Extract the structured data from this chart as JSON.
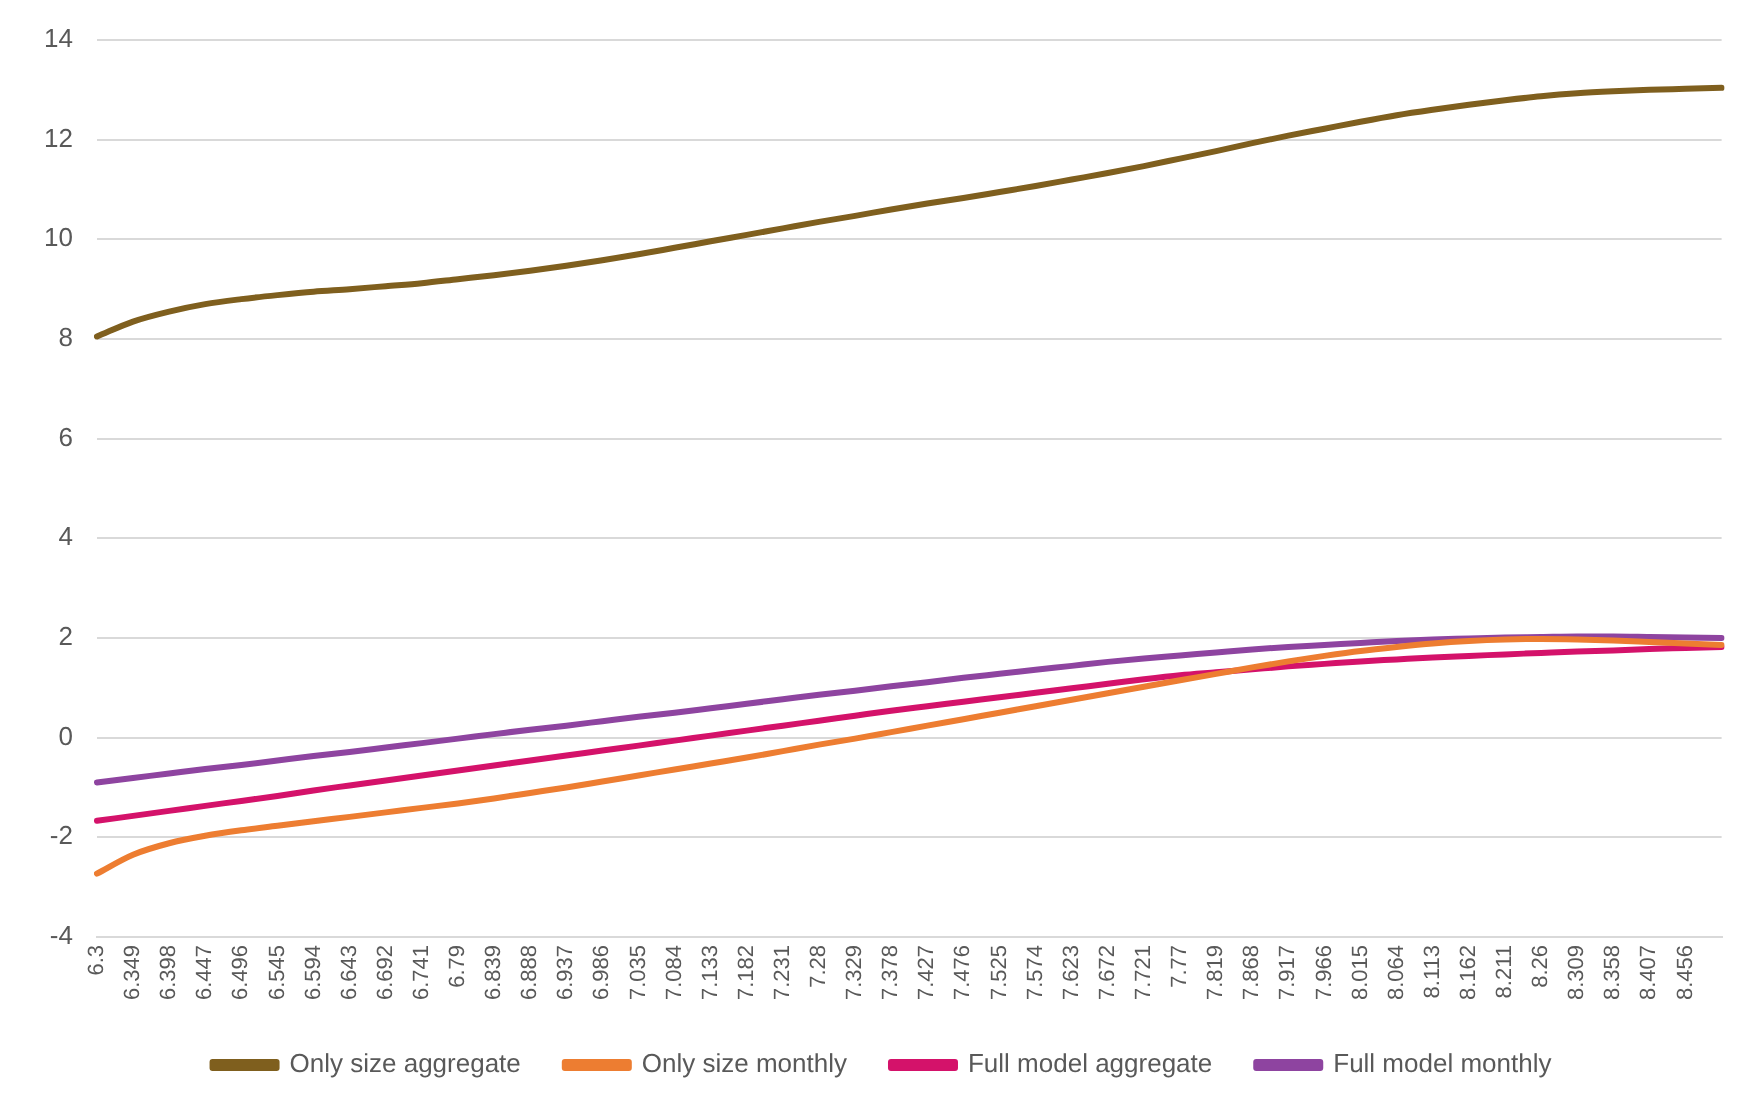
{
  "chart_data": {
    "type": "line",
    "categories": [
      "6.3",
      "6.349",
      "6.398",
      "6.447",
      "6.496",
      "6.545",
      "6.594",
      "6.643",
      "6.692",
      "6.741",
      "6.79",
      "6.839",
      "6.888",
      "6.937",
      "6.986",
      "7.035",
      "7.084",
      "7.133",
      "7.182",
      "7.231",
      "7.28",
      "7.329",
      "7.378",
      "7.427",
      "7.476",
      "7.525",
      "7.574",
      "7.623",
      "7.672",
      "7.721",
      "7.77",
      "7.819",
      "7.868",
      "7.917",
      "7.966",
      "8.015",
      "8.064",
      "8.113",
      "8.162",
      "8.211",
      "8.26",
      "8.309",
      "8.358",
      "8.407",
      "8.456",
      null
    ],
    "series": [
      {
        "name": "Only size aggregate",
        "color": "#7f5f1e",
        "values": [
          8.05,
          8.35,
          8.55,
          8.7,
          8.8,
          8.88,
          8.95,
          9.0,
          9.06,
          9.12,
          9.2,
          9.28,
          9.37,
          9.47,
          9.58,
          9.7,
          9.83,
          9.96,
          10.09,
          10.22,
          10.35,
          10.47,
          10.6,
          10.72,
          10.83,
          10.95,
          11.07,
          11.2,
          11.33,
          11.47,
          11.62,
          11.77,
          11.93,
          12.08,
          12.22,
          12.36,
          12.49,
          12.6,
          12.7,
          12.79,
          12.87,
          12.93,
          12.97,
          13.0,
          13.02,
          13.04
        ]
      },
      {
        "name": "Only size monthly",
        "color": "#ed7d31",
        "values": [
          -2.73,
          -2.35,
          -2.12,
          -1.97,
          -1.86,
          -1.77,
          -1.68,
          -1.59,
          -1.5,
          -1.41,
          -1.32,
          -1.22,
          -1.11,
          -1.0,
          -0.88,
          -0.76,
          -0.64,
          -0.52,
          -0.4,
          -0.27,
          -0.14,
          -0.02,
          0.11,
          0.24,
          0.37,
          0.5,
          0.63,
          0.76,
          0.89,
          1.02,
          1.15,
          1.28,
          1.41,
          1.53,
          1.64,
          1.74,
          1.82,
          1.89,
          1.94,
          1.97,
          1.98,
          1.97,
          1.95,
          1.92,
          1.89,
          1.86
        ]
      },
      {
        "name": "Full model aggregate",
        "color": "#d4126a",
        "values": [
          -1.67,
          -1.57,
          -1.47,
          -1.37,
          -1.27,
          -1.17,
          -1.06,
          -0.96,
          -0.86,
          -0.76,
          -0.66,
          -0.56,
          -0.46,
          -0.36,
          -0.26,
          -0.16,
          -0.06,
          0.04,
          0.14,
          0.24,
          0.34,
          0.44,
          0.54,
          0.63,
          0.72,
          0.81,
          0.9,
          0.99,
          1.08,
          1.17,
          1.25,
          1.31,
          1.37,
          1.43,
          1.48,
          1.53,
          1.57,
          1.61,
          1.64,
          1.67,
          1.7,
          1.73,
          1.75,
          1.78,
          1.8,
          1.82
        ]
      },
      {
        "name": "Full model monthly",
        "color": "#8e44a0",
        "values": [
          -0.9,
          -0.81,
          -0.72,
          -0.63,
          -0.55,
          -0.46,
          -0.37,
          -0.29,
          -0.2,
          -0.11,
          -0.02,
          0.07,
          0.16,
          0.24,
          0.33,
          0.42,
          0.5,
          0.59,
          0.68,
          0.77,
          0.86,
          0.94,
          1.03,
          1.11,
          1.2,
          1.28,
          1.36,
          1.44,
          1.52,
          1.59,
          1.65,
          1.71,
          1.77,
          1.82,
          1.86,
          1.9,
          1.94,
          1.97,
          1.99,
          2.01,
          2.02,
          2.03,
          2.03,
          2.02,
          2.01,
          2.0
        ]
      }
    ],
    "ylim": [
      -4,
      14
    ],
    "yticks": [
      -4,
      -2,
      0,
      2,
      4,
      6,
      8,
      10,
      12,
      14
    ],
    "grid": "y",
    "legend": "bottom",
    "marker": "none",
    "line_style": "solid"
  }
}
